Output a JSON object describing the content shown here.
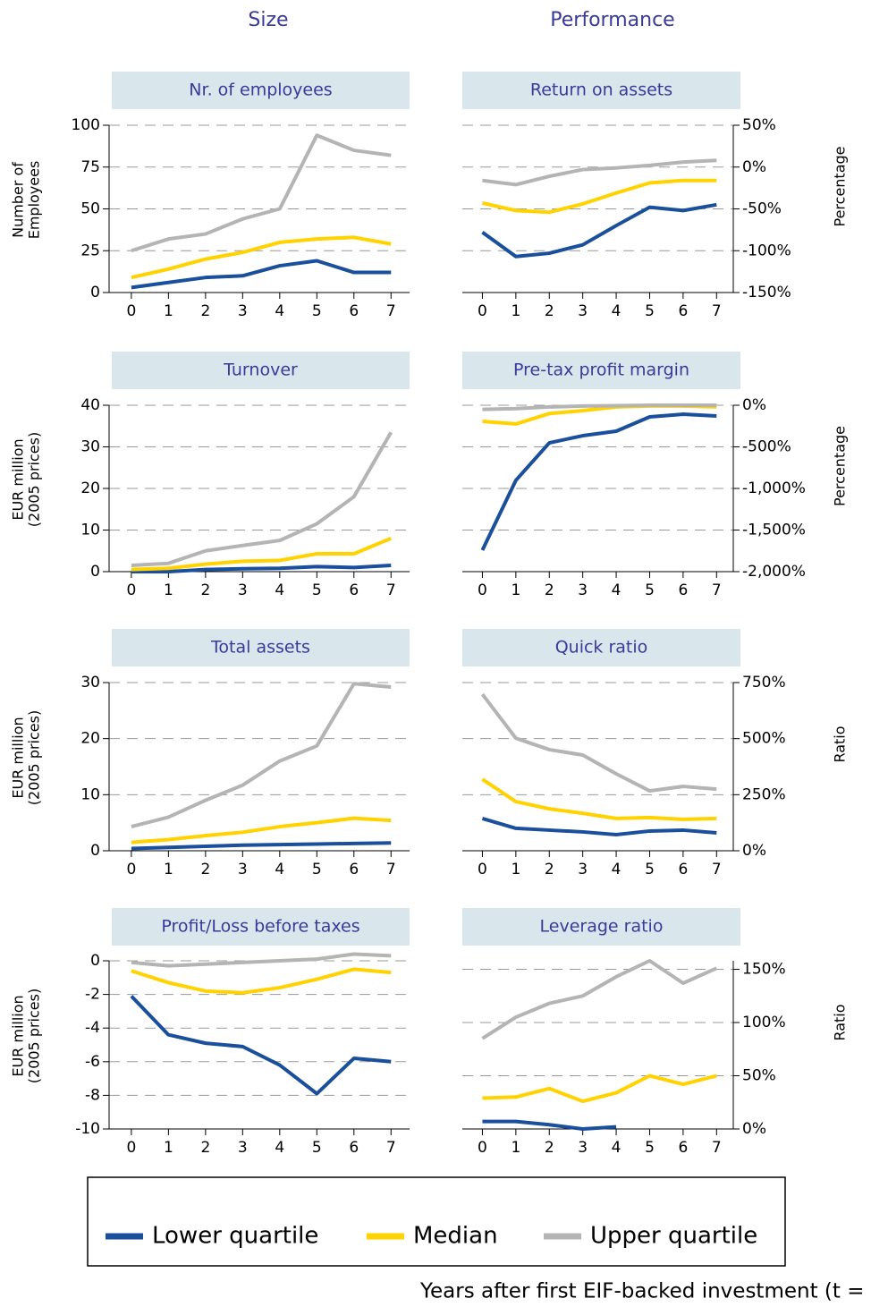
{
  "headers": [
    "Size",
    "Performance"
  ],
  "footer": "Years after first EIF-backed investment (t =",
  "chart_data": [
    {
      "type": "line",
      "title": "Nr. of employees",
      "ylabel": [
        "Number of",
        "Employees"
      ],
      "y_axis_side": "left",
      "x": [
        0,
        1,
        2,
        3,
        4,
        5,
        6,
        7
      ],
      "xlim": [
        -0.6,
        7.5
      ],
      "xticks": [
        0,
        1,
        2,
        3,
        4,
        5,
        6,
        7
      ],
      "ylim": [
        0,
        100
      ],
      "yticks": [
        0,
        25,
        50,
        75,
        100
      ],
      "grid": true,
      "series": [
        {
          "name": "Lower quartile",
          "color": "#1a4f9c",
          "values": [
            3,
            6,
            9,
            10,
            16,
            19,
            12,
            12
          ]
        },
        {
          "name": "Median",
          "color": "#ffd200",
          "values": [
            9,
            14,
            20,
            24,
            30,
            32,
            33,
            29
          ]
        },
        {
          "name": "Upper quartile",
          "color": "#b4b4b4",
          "values": [
            25,
            32,
            35,
            44,
            50,
            94,
            85,
            82
          ]
        }
      ]
    },
    {
      "type": "line",
      "title": "Return on assets",
      "ylabel": [
        "Percentage"
      ],
      "y_axis_side": "right",
      "x": [
        0,
        1,
        2,
        3,
        4,
        5,
        6,
        7
      ],
      "xlim": [
        -0.6,
        7.5
      ],
      "xticks": [
        0,
        1,
        2,
        3,
        4,
        5,
        6,
        7
      ],
      "ylim": [
        -150,
        50
      ],
      "yticks": [
        {
          "value": -150,
          "label": "-150%"
        },
        {
          "value": -100,
          "label": "-100%"
        },
        {
          "value": -50,
          "label": "-50%"
        },
        {
          "value": 0,
          "label": "0%"
        },
        {
          "value": 50,
          "label": "50%"
        }
      ],
      "grid": true,
      "series": [
        {
          "name": "Lower quartile",
          "color": "#1a4f9c",
          "values": [
            -78,
            -107,
            -103,
            -93,
            -70,
            -48,
            -52,
            -45
          ]
        },
        {
          "name": "Median",
          "color": "#ffd200",
          "values": [
            -43,
            -52,
            -54,
            -44,
            -31,
            -19,
            -16,
            -16
          ]
        },
        {
          "name": "Upper quartile",
          "color": "#b4b4b4",
          "values": [
            -16,
            -21,
            -11,
            -3,
            -1,
            2,
            6,
            8
          ]
        }
      ]
    },
    {
      "type": "line",
      "title": "Turnover",
      "ylabel": [
        "EUR million",
        "(2005 prices)"
      ],
      "y_axis_side": "left",
      "x": [
        0,
        1,
        2,
        3,
        4,
        5,
        6,
        7
      ],
      "xlim": [
        -0.6,
        7.5
      ],
      "xticks": [
        0,
        1,
        2,
        3,
        4,
        5,
        6,
        7
      ],
      "ylim": [
        0,
        40
      ],
      "yticks": [
        0,
        10,
        20,
        30,
        40
      ],
      "grid": true,
      "series": [
        {
          "name": "Lower quartile",
          "color": "#1a4f9c",
          "values": [
            0,
            0,
            0.5,
            0.7,
            0.8,
            1.2,
            1,
            1.5
          ]
        },
        {
          "name": "Median",
          "color": "#ffd200",
          "values": [
            0.5,
            0.8,
            1.8,
            2.5,
            2.7,
            4.3,
            4.3,
            8
          ]
        },
        {
          "name": "Upper quartile",
          "color": "#b4b4b4",
          "values": [
            1.5,
            2,
            5,
            6.3,
            7.5,
            11.5,
            18,
            33.5
          ]
        }
      ]
    },
    {
      "type": "line",
      "title": "Pre-tax profit margin",
      "ylabel": [
        "Percentage"
      ],
      "y_axis_side": "right",
      "x": [
        0,
        1,
        2,
        3,
        4,
        5,
        6,
        7
      ],
      "xlim": [
        -0.6,
        7.5
      ],
      "xticks": [
        0,
        1,
        2,
        3,
        4,
        5,
        6,
        7
      ],
      "ylim": [
        -2000,
        0
      ],
      "yticks": [
        {
          "value": -2000,
          "label": "-2,000%"
        },
        {
          "value": -1500,
          "label": "-1,500%"
        },
        {
          "value": -1000,
          "label": "-1,000%"
        },
        {
          "value": -500,
          "label": "-500%"
        },
        {
          "value": 0,
          "label": "0%"
        }
      ],
      "grid": true,
      "series": [
        {
          "name": "Lower quartile",
          "color": "#1a4f9c",
          "values": [
            -1742,
            -903,
            -452,
            -366,
            -312,
            -140,
            -108,
            -129
          ]
        },
        {
          "name": "Median",
          "color": "#ffd200",
          "values": [
            -194,
            -225,
            -100,
            -65,
            -20,
            -10,
            -10,
            -20
          ]
        },
        {
          "name": "Upper quartile",
          "color": "#b4b4b4",
          "values": [
            -50,
            -40,
            -20,
            -10,
            -5,
            0,
            0,
            0
          ]
        }
      ]
    },
    {
      "type": "line",
      "title": "Total assets",
      "ylabel": [
        "EUR million",
        "(2005 prices)"
      ],
      "y_axis_side": "left",
      "x": [
        0,
        1,
        2,
        3,
        4,
        5,
        6,
        7
      ],
      "xlim": [
        -0.6,
        7.5
      ],
      "xticks": [
        0,
        1,
        2,
        3,
        4,
        5,
        6,
        7
      ],
      "ylim": [
        0,
        30
      ],
      "yticks": [
        0,
        10,
        20,
        30
      ],
      "grid": true,
      "series": [
        {
          "name": "Lower quartile",
          "color": "#1a4f9c",
          "values": [
            0.4,
            0.6,
            0.8,
            1,
            1.1,
            1.2,
            1.3,
            1.4
          ]
        },
        {
          "name": "Median",
          "color": "#ffd200",
          "values": [
            1.5,
            2,
            2.7,
            3.3,
            4.3,
            5,
            5.8,
            5.4
          ]
        },
        {
          "name": "Upper quartile",
          "color": "#b4b4b4",
          "values": [
            4.3,
            6,
            9,
            11.7,
            16,
            18.7,
            29.8,
            29.2
          ]
        }
      ]
    },
    {
      "type": "line",
      "title": "Quick ratio",
      "ylabel": [
        "Ratio"
      ],
      "y_axis_side": "right",
      "x": [
        0,
        1,
        2,
        3,
        4,
        5,
        6,
        7
      ],
      "xlim": [
        -0.6,
        7.5
      ],
      "xticks": [
        0,
        1,
        2,
        3,
        4,
        5,
        6,
        7
      ],
      "ylim": [
        0,
        750
      ],
      "yticks": [
        {
          "value": 0,
          "label": "0%"
        },
        {
          "value": 250,
          "label": "250%"
        },
        {
          "value": 500,
          "label": "500%"
        },
        {
          "value": 750,
          "label": "750%"
        }
      ],
      "grid": true,
      "series": [
        {
          "name": "Lower quartile",
          "color": "#1a4f9c",
          "values": [
            144,
            100,
            92,
            84,
            72,
            88,
            92,
            80
          ]
        },
        {
          "name": "Median",
          "color": "#ffd200",
          "values": [
            319,
            219,
            187,
            167,
            144,
            148,
            140,
            144
          ]
        },
        {
          "name": "Upper quartile",
          "color": "#b4b4b4",
          "values": [
            698,
            502,
            451,
            427,
            343,
            267,
            287,
            275
          ]
        }
      ]
    },
    {
      "type": "line",
      "title": "Profit/Loss before taxes",
      "ylabel": [
        "EUR million",
        "(2005 prices)"
      ],
      "y_axis_side": "left",
      "x": [
        0,
        1,
        2,
        3,
        4,
        5,
        6,
        7
      ],
      "xlim": [
        -0.6,
        7.5
      ],
      "xticks": [
        0,
        1,
        2,
        3,
        4,
        5,
        6,
        7
      ],
      "ylim": [
        -10,
        0
      ],
      "yticks": [
        -10,
        -8,
        -6,
        -4,
        -2,
        0
      ],
      "grid": true,
      "series": [
        {
          "name": "Lower quartile",
          "color": "#1a4f9c",
          "values": [
            -2.1,
            -4.4,
            -4.9,
            -5.1,
            -6.2,
            -7.9,
            -5.8,
            -6
          ]
        },
        {
          "name": "Median",
          "color": "#ffd200",
          "values": [
            -0.6,
            -1.3,
            -1.8,
            -1.9,
            -1.6,
            -1.1,
            -0.5,
            -0.7
          ]
        },
        {
          "name": "Upper quartile",
          "color": "#b4b4b4",
          "values": [
            -0.1,
            -0.3,
            -0.2,
            -0.1,
            0,
            0.1,
            0.4,
            0.3
          ]
        }
      ]
    },
    {
      "type": "line",
      "title": "Leverage ratio",
      "ylabel": [
        "Ratio"
      ],
      "y_axis_side": "right",
      "x": [
        0,
        1,
        2,
        3,
        4,
        5,
        6,
        7
      ],
      "xlim": [
        -0.6,
        7.5
      ],
      "xticks": [
        0,
        1,
        2,
        3,
        4,
        5,
        6,
        7
      ],
      "ylim": [
        0,
        158
      ],
      "yticks": [
        {
          "value": 0,
          "label": "0%"
        },
        {
          "value": 50,
          "label": "50%"
        },
        {
          "value": 100,
          "label": "100%"
        },
        {
          "value": 150,
          "label": "150%"
        }
      ],
      "grid": true,
      "series": [
        {
          "name": "Lower quartile",
          "color": "#1a4f9c",
          "values": [
            7,
            7,
            4,
            0,
            2,
            null,
            null,
            null
          ]
        },
        {
          "name": "Median",
          "color": "#ffd200",
          "values": [
            29,
            30,
            38,
            26,
            34,
            50,
            42,
            50
          ]
        },
        {
          "name": "Upper quartile",
          "color": "#b4b4b4",
          "values": [
            85,
            105,
            118,
            125,
            143,
            158,
            137,
            151
          ]
        }
      ]
    }
  ]
}
